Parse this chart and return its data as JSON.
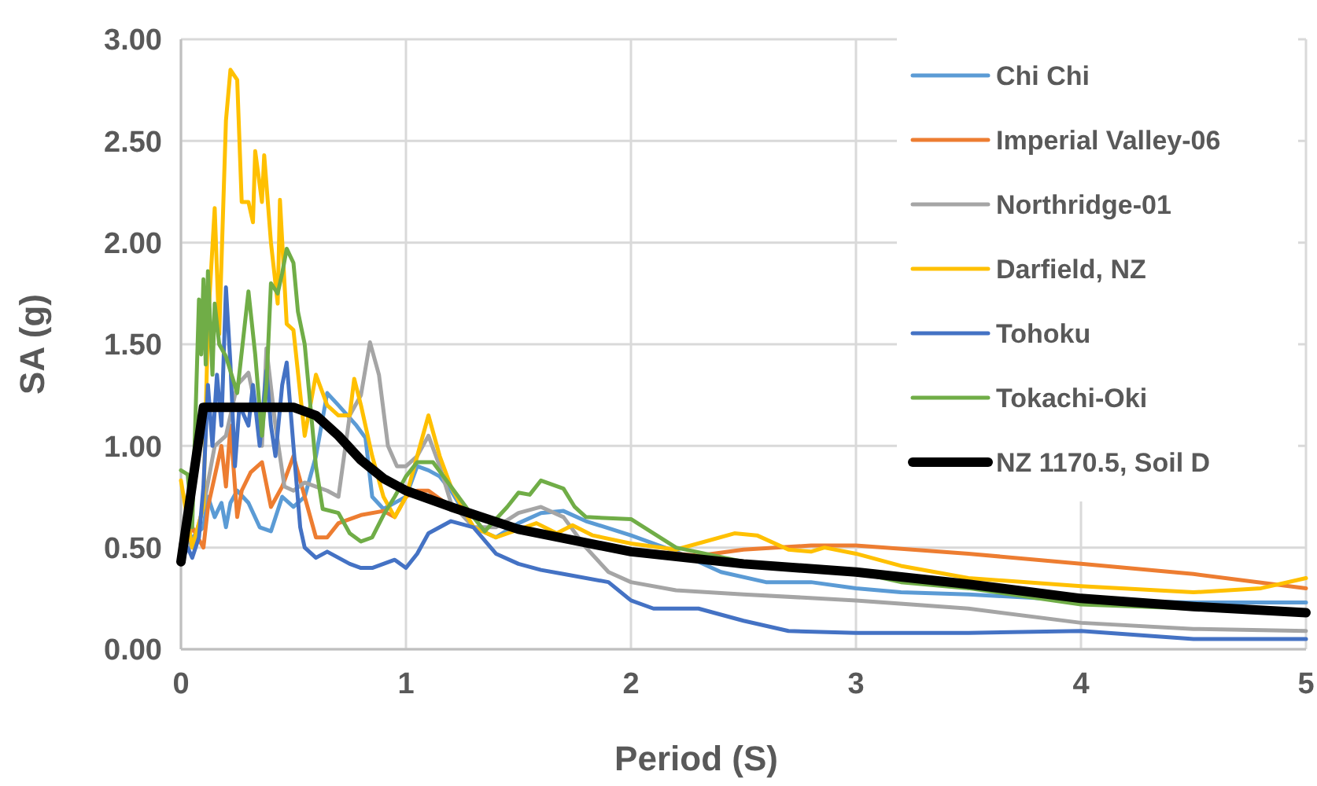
{
  "chart_data": {
    "type": "line",
    "xlabel": "Period (S)",
    "ylabel": "SA (g)",
    "xlim": [
      0,
      5
    ],
    "xticks": [
      0,
      1,
      2,
      3,
      4,
      5
    ],
    "ylim": [
      0,
      3
    ],
    "yticks": [
      {
        "value": 0,
        "label": "0.00"
      },
      {
        "value": 0.5,
        "label": "0.50"
      },
      {
        "value": 1,
        "label": "1.00"
      },
      {
        "value": 1.5,
        "label": "1.50"
      },
      {
        "value": 2,
        "label": "2.00"
      },
      {
        "value": 2.5,
        "label": "2.50"
      },
      {
        "value": 3,
        "label": "3.00"
      }
    ],
    "grid": true,
    "legend": "top right",
    "line_style": "solid",
    "series": [
      {
        "name": "Chi Chi",
        "color": "#5b9bd5",
        "x": [
          0,
          0.05,
          0.1,
          0.12,
          0.15,
          0.18,
          0.2,
          0.22,
          0.25,
          0.3,
          0.35,
          0.4,
          0.45,
          0.5,
          0.55,
          0.6,
          0.65,
          0.7,
          0.78,
          0.82,
          0.85,
          0.9,
          1.0,
          1.05,
          1.1,
          1.15,
          1.2,
          1.3,
          1.4,
          1.5,
          1.6,
          1.7,
          1.8,
          2.0,
          2.2,
          2.4,
          2.6,
          2.8,
          3.0,
          3.2,
          3.5,
          4.0,
          4.5,
          5.0
        ],
        "values": [
          0.45,
          0.55,
          0.6,
          0.75,
          0.65,
          0.72,
          0.6,
          0.72,
          0.78,
          0.72,
          0.6,
          0.58,
          0.75,
          0.7,
          0.75,
          0.95,
          1.26,
          1.2,
          1.1,
          1.04,
          0.75,
          0.69,
          0.75,
          0.9,
          0.88,
          0.85,
          0.78,
          0.6,
          0.55,
          0.62,
          0.67,
          0.68,
          0.63,
          0.56,
          0.48,
          0.38,
          0.33,
          0.33,
          0.3,
          0.28,
          0.27,
          0.24,
          0.23,
          0.23
        ]
      },
      {
        "name": "Imperial Valley-06",
        "color": "#ed7d31",
        "x": [
          0,
          0.05,
          0.1,
          0.12,
          0.15,
          0.18,
          0.2,
          0.22,
          0.25,
          0.27,
          0.31,
          0.36,
          0.4,
          0.45,
          0.5,
          0.55,
          0.6,
          0.65,
          0.7,
          0.8,
          0.9,
          0.95,
          1.0,
          1.05,
          1.1,
          1.2,
          1.3,
          1.5,
          2.0,
          2.3,
          2.5,
          2.8,
          3.0,
          3.5,
          4.0,
          4.5,
          5.0
        ],
        "values": [
          0.45,
          0.6,
          0.5,
          0.7,
          0.85,
          1.0,
          0.8,
          1.1,
          0.65,
          0.78,
          0.87,
          0.92,
          0.7,
          0.8,
          0.95,
          0.75,
          0.55,
          0.55,
          0.62,
          0.66,
          0.68,
          0.65,
          0.75,
          0.78,
          0.78,
          0.7,
          0.65,
          0.6,
          0.49,
          0.46,
          0.49,
          0.51,
          0.51,
          0.47,
          0.42,
          0.37,
          0.3
        ]
      },
      {
        "name": "Northridge-01",
        "color": "#a5a5a5",
        "x": [
          0,
          0.05,
          0.1,
          0.15,
          0.2,
          0.25,
          0.3,
          0.33,
          0.36,
          0.38,
          0.42,
          0.46,
          0.5,
          0.55,
          0.6,
          0.65,
          0.7,
          0.75,
          0.8,
          0.84,
          0.88,
          0.92,
          0.96,
          1.0,
          1.05,
          1.1,
          1.15,
          1.2,
          1.3,
          1.4,
          1.5,
          1.6,
          1.7,
          1.8,
          1.9,
          2.0,
          2.2,
          2.5,
          3.0,
          3.5,
          4.0,
          4.5,
          5.0
        ],
        "values": [
          0.52,
          0.5,
          0.7,
          1.0,
          1.05,
          1.3,
          1.36,
          1.2,
          1.0,
          1.48,
          1.1,
          0.8,
          0.78,
          0.82,
          0.8,
          0.78,
          0.75,
          1.15,
          1.25,
          1.51,
          1.35,
          1.0,
          0.9,
          0.9,
          0.95,
          1.05,
          0.9,
          0.72,
          0.6,
          0.6,
          0.67,
          0.7,
          0.65,
          0.5,
          0.38,
          0.33,
          0.29,
          0.27,
          0.24,
          0.2,
          0.13,
          0.1,
          0.09
        ]
      },
      {
        "name": "Darfield, NZ",
        "color": "#ffc000",
        "x": [
          0,
          0.05,
          0.1,
          0.12,
          0.15,
          0.17,
          0.2,
          0.22,
          0.25,
          0.27,
          0.3,
          0.32,
          0.33,
          0.36,
          0.37,
          0.4,
          0.43,
          0.44,
          0.47,
          0.5,
          0.55,
          0.6,
          0.65,
          0.7,
          0.75,
          0.77,
          0.8,
          0.85,
          0.9,
          0.95,
          1.0,
          1.05,
          1.1,
          1.15,
          1.2,
          1.3,
          1.4,
          1.58,
          1.67,
          1.74,
          1.83,
          2.0,
          2.2,
          2.46,
          2.56,
          2.7,
          2.8,
          2.86,
          3.0,
          3.2,
          3.5,
          4.0,
          4.5,
          4.8,
          5.0
        ],
        "values": [
          0.83,
          0.5,
          0.7,
          1.6,
          2.17,
          1.55,
          2.6,
          2.85,
          2.8,
          2.2,
          2.2,
          2.1,
          2.45,
          2.2,
          2.43,
          2.0,
          1.7,
          2.21,
          1.6,
          1.57,
          1.05,
          1.35,
          1.2,
          1.15,
          1.15,
          1.33,
          1.2,
          0.95,
          0.75,
          0.65,
          0.75,
          0.95,
          1.15,
          0.95,
          0.8,
          0.6,
          0.55,
          0.62,
          0.57,
          0.61,
          0.56,
          0.52,
          0.49,
          0.57,
          0.56,
          0.49,
          0.48,
          0.5,
          0.47,
          0.41,
          0.35,
          0.31,
          0.28,
          0.3,
          0.35
        ]
      },
      {
        "name": "Tohoku",
        "color": "#4472c4",
        "x": [
          0,
          0.03,
          0.05,
          0.08,
          0.1,
          0.12,
          0.14,
          0.16,
          0.18,
          0.2,
          0.22,
          0.24,
          0.26,
          0.28,
          0.3,
          0.32,
          0.35,
          0.38,
          0.4,
          0.42,
          0.45,
          0.47,
          0.5,
          0.53,
          0.55,
          0.6,
          0.65,
          0.7,
          0.75,
          0.8,
          0.85,
          0.9,
          0.95,
          1.0,
          1.05,
          1.1,
          1.2,
          1.3,
          1.4,
          1.5,
          1.6,
          1.7,
          1.9,
          2.0,
          2.1,
          2.3,
          2.5,
          2.7,
          3.0,
          3.5,
          4.0,
          4.5,
          5.0
        ],
        "values": [
          0.43,
          0.5,
          0.45,
          0.55,
          0.8,
          1.3,
          1.0,
          1.35,
          1.1,
          1.78,
          1.4,
          0.9,
          1.2,
          1.15,
          1.1,
          1.3,
          1.0,
          1.37,
          1.1,
          0.95,
          1.3,
          1.41,
          1.0,
          0.6,
          0.5,
          0.45,
          0.48,
          0.45,
          0.42,
          0.4,
          0.4,
          0.42,
          0.44,
          0.4,
          0.47,
          0.57,
          0.63,
          0.6,
          0.47,
          0.42,
          0.39,
          0.37,
          0.33,
          0.24,
          0.2,
          0.2,
          0.14,
          0.09,
          0.08,
          0.08,
          0.09,
          0.05,
          0.05
        ]
      },
      {
        "name": "Tokachi-Oki",
        "color": "#70ad47",
        "x": [
          0,
          0.03,
          0.05,
          0.08,
          0.09,
          0.1,
          0.11,
          0.12,
          0.14,
          0.15,
          0.17,
          0.2,
          0.25,
          0.3,
          0.33,
          0.36,
          0.38,
          0.4,
          0.43,
          0.45,
          0.47,
          0.5,
          0.52,
          0.55,
          0.6,
          0.63,
          0.7,
          0.75,
          0.8,
          0.85,
          0.9,
          0.95,
          1.0,
          1.05,
          1.12,
          1.2,
          1.3,
          1.35,
          1.45,
          1.5,
          1.55,
          1.6,
          1.7,
          1.75,
          1.8,
          2.0,
          2.2,
          2.5,
          3.0,
          3.2,
          3.5,
          4.0,
          4.5,
          5.0
        ],
        "values": [
          0.88,
          0.86,
          0.6,
          1.72,
          1.45,
          1.82,
          1.4,
          1.86,
          1.35,
          1.7,
          1.5,
          1.44,
          1.26,
          1.76,
          1.45,
          1.05,
          1.3,
          1.8,
          1.75,
          1.85,
          1.97,
          1.9,
          1.66,
          1.5,
          0.9,
          0.69,
          0.67,
          0.57,
          0.53,
          0.55,
          0.66,
          0.75,
          0.85,
          0.92,
          0.92,
          0.8,
          0.65,
          0.58,
          0.7,
          0.77,
          0.76,
          0.83,
          0.79,
          0.7,
          0.65,
          0.64,
          0.5,
          0.43,
          0.38,
          0.33,
          0.3,
          0.22,
          0.2,
          0.17
        ]
      },
      {
        "name": "NZ 1170.5, Soil D",
        "color": "#000000",
        "x": [
          0,
          0.1,
          0.5,
          0.6,
          0.7,
          0.8,
          0.9,
          1.0,
          1.2,
          1.5,
          2.0,
          2.5,
          3.0,
          3.5,
          4.0,
          4.5,
          5.0
        ],
        "values": [
          0.43,
          1.19,
          1.19,
          1.15,
          1.05,
          0.93,
          0.84,
          0.78,
          0.7,
          0.59,
          0.48,
          0.42,
          0.38,
          0.32,
          0.25,
          0.21,
          0.18
        ]
      }
    ]
  }
}
